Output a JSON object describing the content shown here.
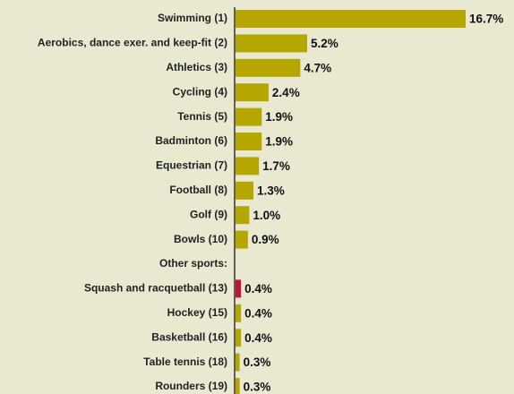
{
  "chart_data": {
    "type": "bar",
    "orientation": "horizontal",
    "categories": [
      "Swimming (1)",
      "Aerobics, dance exer. and keep-fit (2)",
      "Athletics (3)",
      "Cycling (4)",
      "Tennis (5)",
      "Badminton (6)",
      "Equestrian (7)",
      "Football (8)",
      "Golf (9)",
      "Bowls (10)",
      "Other sports:",
      "Squash and racquetball (13)",
      "Hockey (15)",
      "Basketball (16)",
      "Table tennis (18)",
      "Rounders (19)"
    ],
    "values": [
      16.7,
      5.2,
      4.7,
      2.4,
      1.9,
      1.9,
      1.7,
      1.3,
      1.0,
      0.9,
      null,
      0.4,
      0.4,
      0.4,
      0.3,
      0.3
    ],
    "value_labels": [
      "16.7%",
      "5.2%",
      "4.7%",
      "2.4%",
      "1.9%",
      "1.9%",
      "1.7%",
      "1.3%",
      "1.0%",
      "0.9%",
      null,
      "0.4%",
      "0.4%",
      "0.4%",
      "0.3%",
      "0.3%"
    ],
    "colors": [
      "#b5a600",
      "#b5a600",
      "#b5a600",
      "#b5a600",
      "#b5a600",
      "#b5a600",
      "#b5a600",
      "#b5a600",
      "#b5a600",
      "#b5a600",
      null,
      "#c8103c",
      "#b5a600",
      "#b5a600",
      "#b5a600",
      "#b5a600"
    ]
  }
}
